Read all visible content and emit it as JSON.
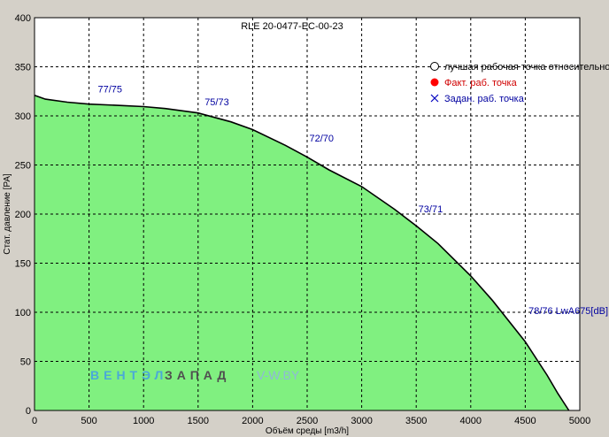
{
  "chart_data": {
    "type": "area",
    "title": "RLE 20-0477-EC-00-23",
    "xlabel": "Объём среды [m3/h]",
    "ylabel": "Стат. давление [PA]",
    "xlim": [
      0,
      5000
    ],
    "ylim": [
      0,
      400
    ],
    "xticks": [
      0,
      500,
      1000,
      1500,
      2000,
      2500,
      3000,
      3500,
      4000,
      4500,
      5000
    ],
    "yticks": [
      0,
      50,
      100,
      150,
      200,
      250,
      300,
      350,
      400
    ],
    "grid": true,
    "fill_color": "#80f080",
    "series": [
      {
        "x": [
          0,
          100,
          300,
          500,
          800,
          1000,
          1200,
          1500,
          1800,
          2000,
          2300,
          2500,
          2700,
          3000,
          3300,
          3500,
          3700,
          4000,
          4200,
          4500,
          4700,
          4800,
          4900
        ],
        "y": [
          321,
          317,
          314,
          312,
          310.5,
          309.5,
          307.5,
          303,
          294,
          286,
          270,
          258,
          245,
          228,
          205,
          188,
          170,
          137,
          112,
          70,
          36,
          17,
          0
        ]
      }
    ],
    "annotations": [
      {
        "text": "77/75",
        "x": 580,
        "y": 324
      },
      {
        "text": "75/73",
        "x": 1560,
        "y": 311
      },
      {
        "text": "72/70",
        "x": 2520,
        "y": 274
      },
      {
        "text": "73/71",
        "x": 3520,
        "y": 202
      },
      {
        "text": "78/76 LwA675[dB]",
        "x": 4530,
        "y": 98
      }
    ],
    "legend": {
      "position": "top-right",
      "entries": [
        {
          "label": "лучшая рабочая точка относительно",
          "marker": "hollow-circle",
          "color": "#000000"
        },
        {
          "label": "Факт. раб. точка",
          "marker": "filled-circle",
          "color": "#ff0000"
        },
        {
          "label": "Задан. раб. точка",
          "marker": "cross",
          "color": "#0000c0"
        }
      ]
    },
    "watermark": {
      "part1": "ВЕНТЭЛ",
      "part2": "ЗАПАД",
      "part3": "V-W.BY"
    }
  }
}
